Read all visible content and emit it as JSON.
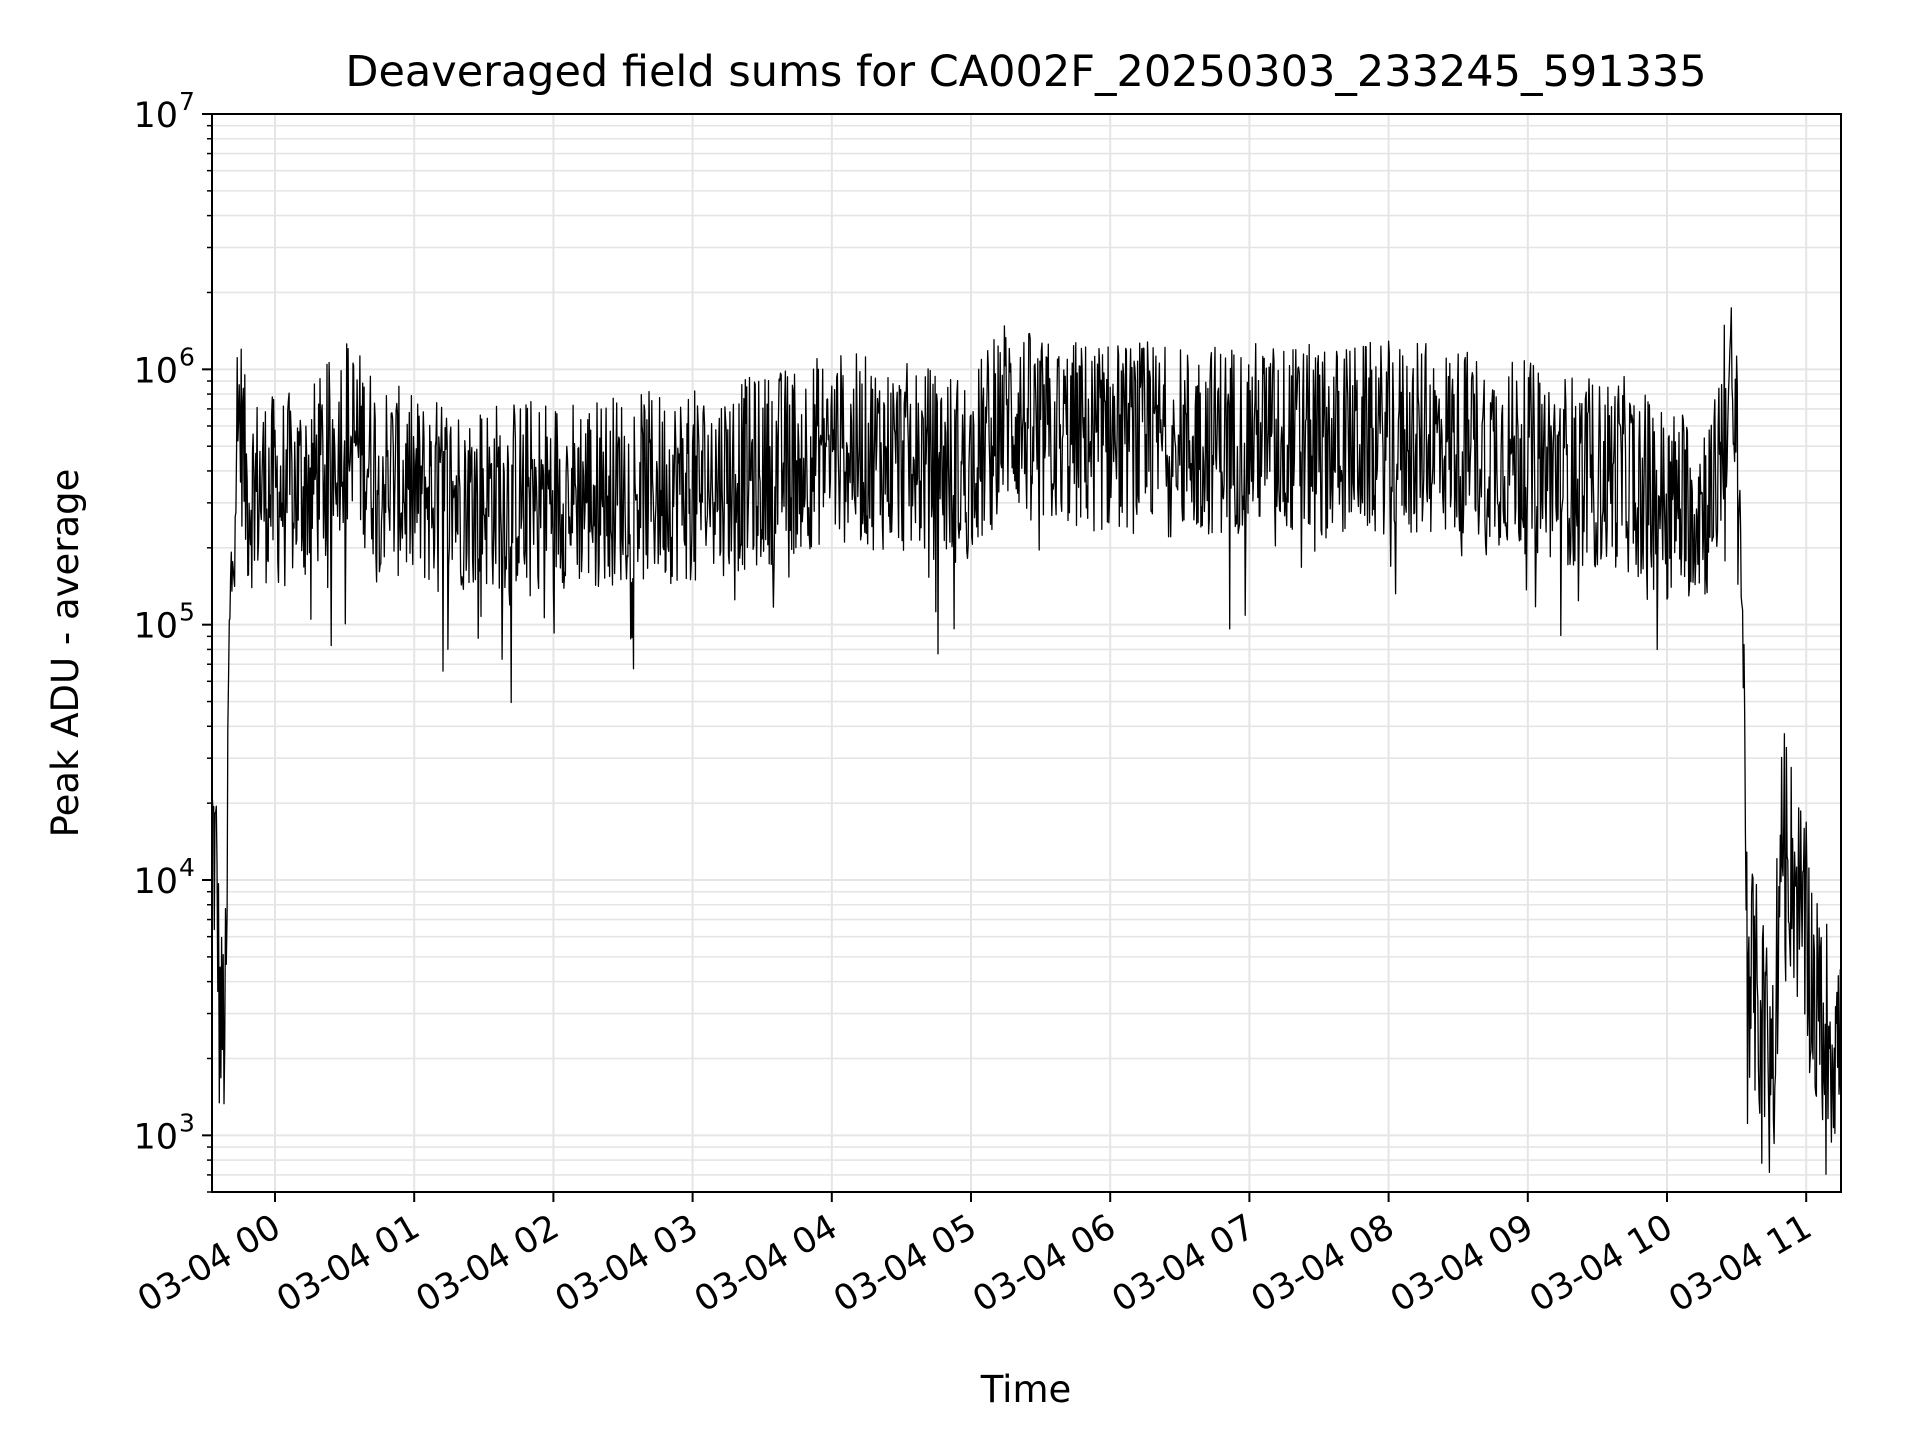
{
  "chart_data": {
    "type": "line",
    "title": "Deaveraged field sums for CA002F_20250303_233245_591335",
    "xlabel": "Time",
    "ylabel": "Peak ADU - average",
    "y_scale": "log",
    "ylim": [
      600,
      10000000
    ],
    "xlim": [
      "2025-03-03 23:32",
      "2025-03-04 11:15"
    ],
    "grid": true,
    "line_color": "#000000",
    "grid_color": "#e5e5e5",
    "x_tick_labels": [
      "03-04 00",
      "03-04 01",
      "03-04 02",
      "03-04 03",
      "03-04 04",
      "03-04 05",
      "03-04 06",
      "03-04 07",
      "03-04 08",
      "03-04 09",
      "03-04 10",
      "03-04 11"
    ],
    "y_tick_labels": [
      {
        "base": "10",
        "exp": "3",
        "value": 1000
      },
      {
        "base": "10",
        "exp": "4",
        "value": 10000
      },
      {
        "base": "10",
        "exp": "5",
        "value": 100000
      },
      {
        "base": "10",
        "exp": "6",
        "value": 1000000
      },
      {
        "base": "10",
        "exp": "7",
        "value": 10000000
      }
    ],
    "series": [
      {
        "x": [
          "2025-03-03 23:33",
          "2025-03-03 23:35",
          "2025-03-03 23:36",
          "2025-03-03 23:37",
          "2025-03-03 23:38",
          "2025-03-03 23:39",
          "2025-03-03 23:40",
          "2025-03-03 23:42",
          "2025-03-03 23:44",
          "2025-03-03 23:46",
          "2025-03-03 23:47",
          "2025-03-03 23:48",
          "2025-03-03 23:50",
          "2025-03-03 23:52",
          "2025-03-03 23:55",
          "2025-03-04 00:00",
          "2025-03-04 00:10",
          "2025-03-04 00:20",
          "2025-03-04 00:30",
          "2025-03-04 00:45",
          "2025-03-04 01:00",
          "2025-03-04 01:30",
          "2025-03-04 02:00",
          "2025-03-04 02:30",
          "2025-03-04 03:00",
          "2025-03-04 03:30",
          "2025-03-04 04:00",
          "2025-03-04 04:30",
          "2025-03-04 05:00",
          "2025-03-04 05:15",
          "2025-03-04 05:30",
          "2025-03-04 06:00",
          "2025-03-04 06:30",
          "2025-03-04 07:00",
          "2025-03-04 07:30",
          "2025-03-04 08:00",
          "2025-03-04 08:30",
          "2025-03-04 09:00",
          "2025-03-04 09:30",
          "2025-03-04 09:40",
          "2025-03-04 10:00",
          "2025-03-04 10:20",
          "2025-03-04 10:25",
          "2025-03-04 10:28",
          "2025-03-04 10:30",
          "2025-03-04 10:32",
          "2025-03-04 10:35",
          "2025-03-04 10:40",
          "2025-03-04 10:45",
          "2025-03-04 10:50",
          "2025-03-04 10:55",
          "2025-03-04 11:00",
          "2025-03-04 11:05",
          "2025-03-04 11:10",
          "2025-03-04 11:15"
        ],
        "values": [
          15000,
          10000,
          3000,
          2500,
          2700,
          3000,
          60000,
          250000,
          700000,
          550000,
          400000,
          320000,
          330000,
          340000,
          350000,
          330000,
          350000,
          400000,
          600000,
          400000,
          330000,
          320000,
          330000,
          340000,
          350000,
          400000,
          500000,
          450000,
          400000,
          700000,
          550000,
          550000,
          520000,
          550000,
          520000,
          540000,
          520000,
          450000,
          380000,
          400000,
          300000,
          300000,
          700000,
          800000,
          500000,
          200000,
          5000,
          3000,
          2000,
          15000,
          10000,
          6000,
          3000,
          2500,
          2200
        ]
      }
    ]
  }
}
